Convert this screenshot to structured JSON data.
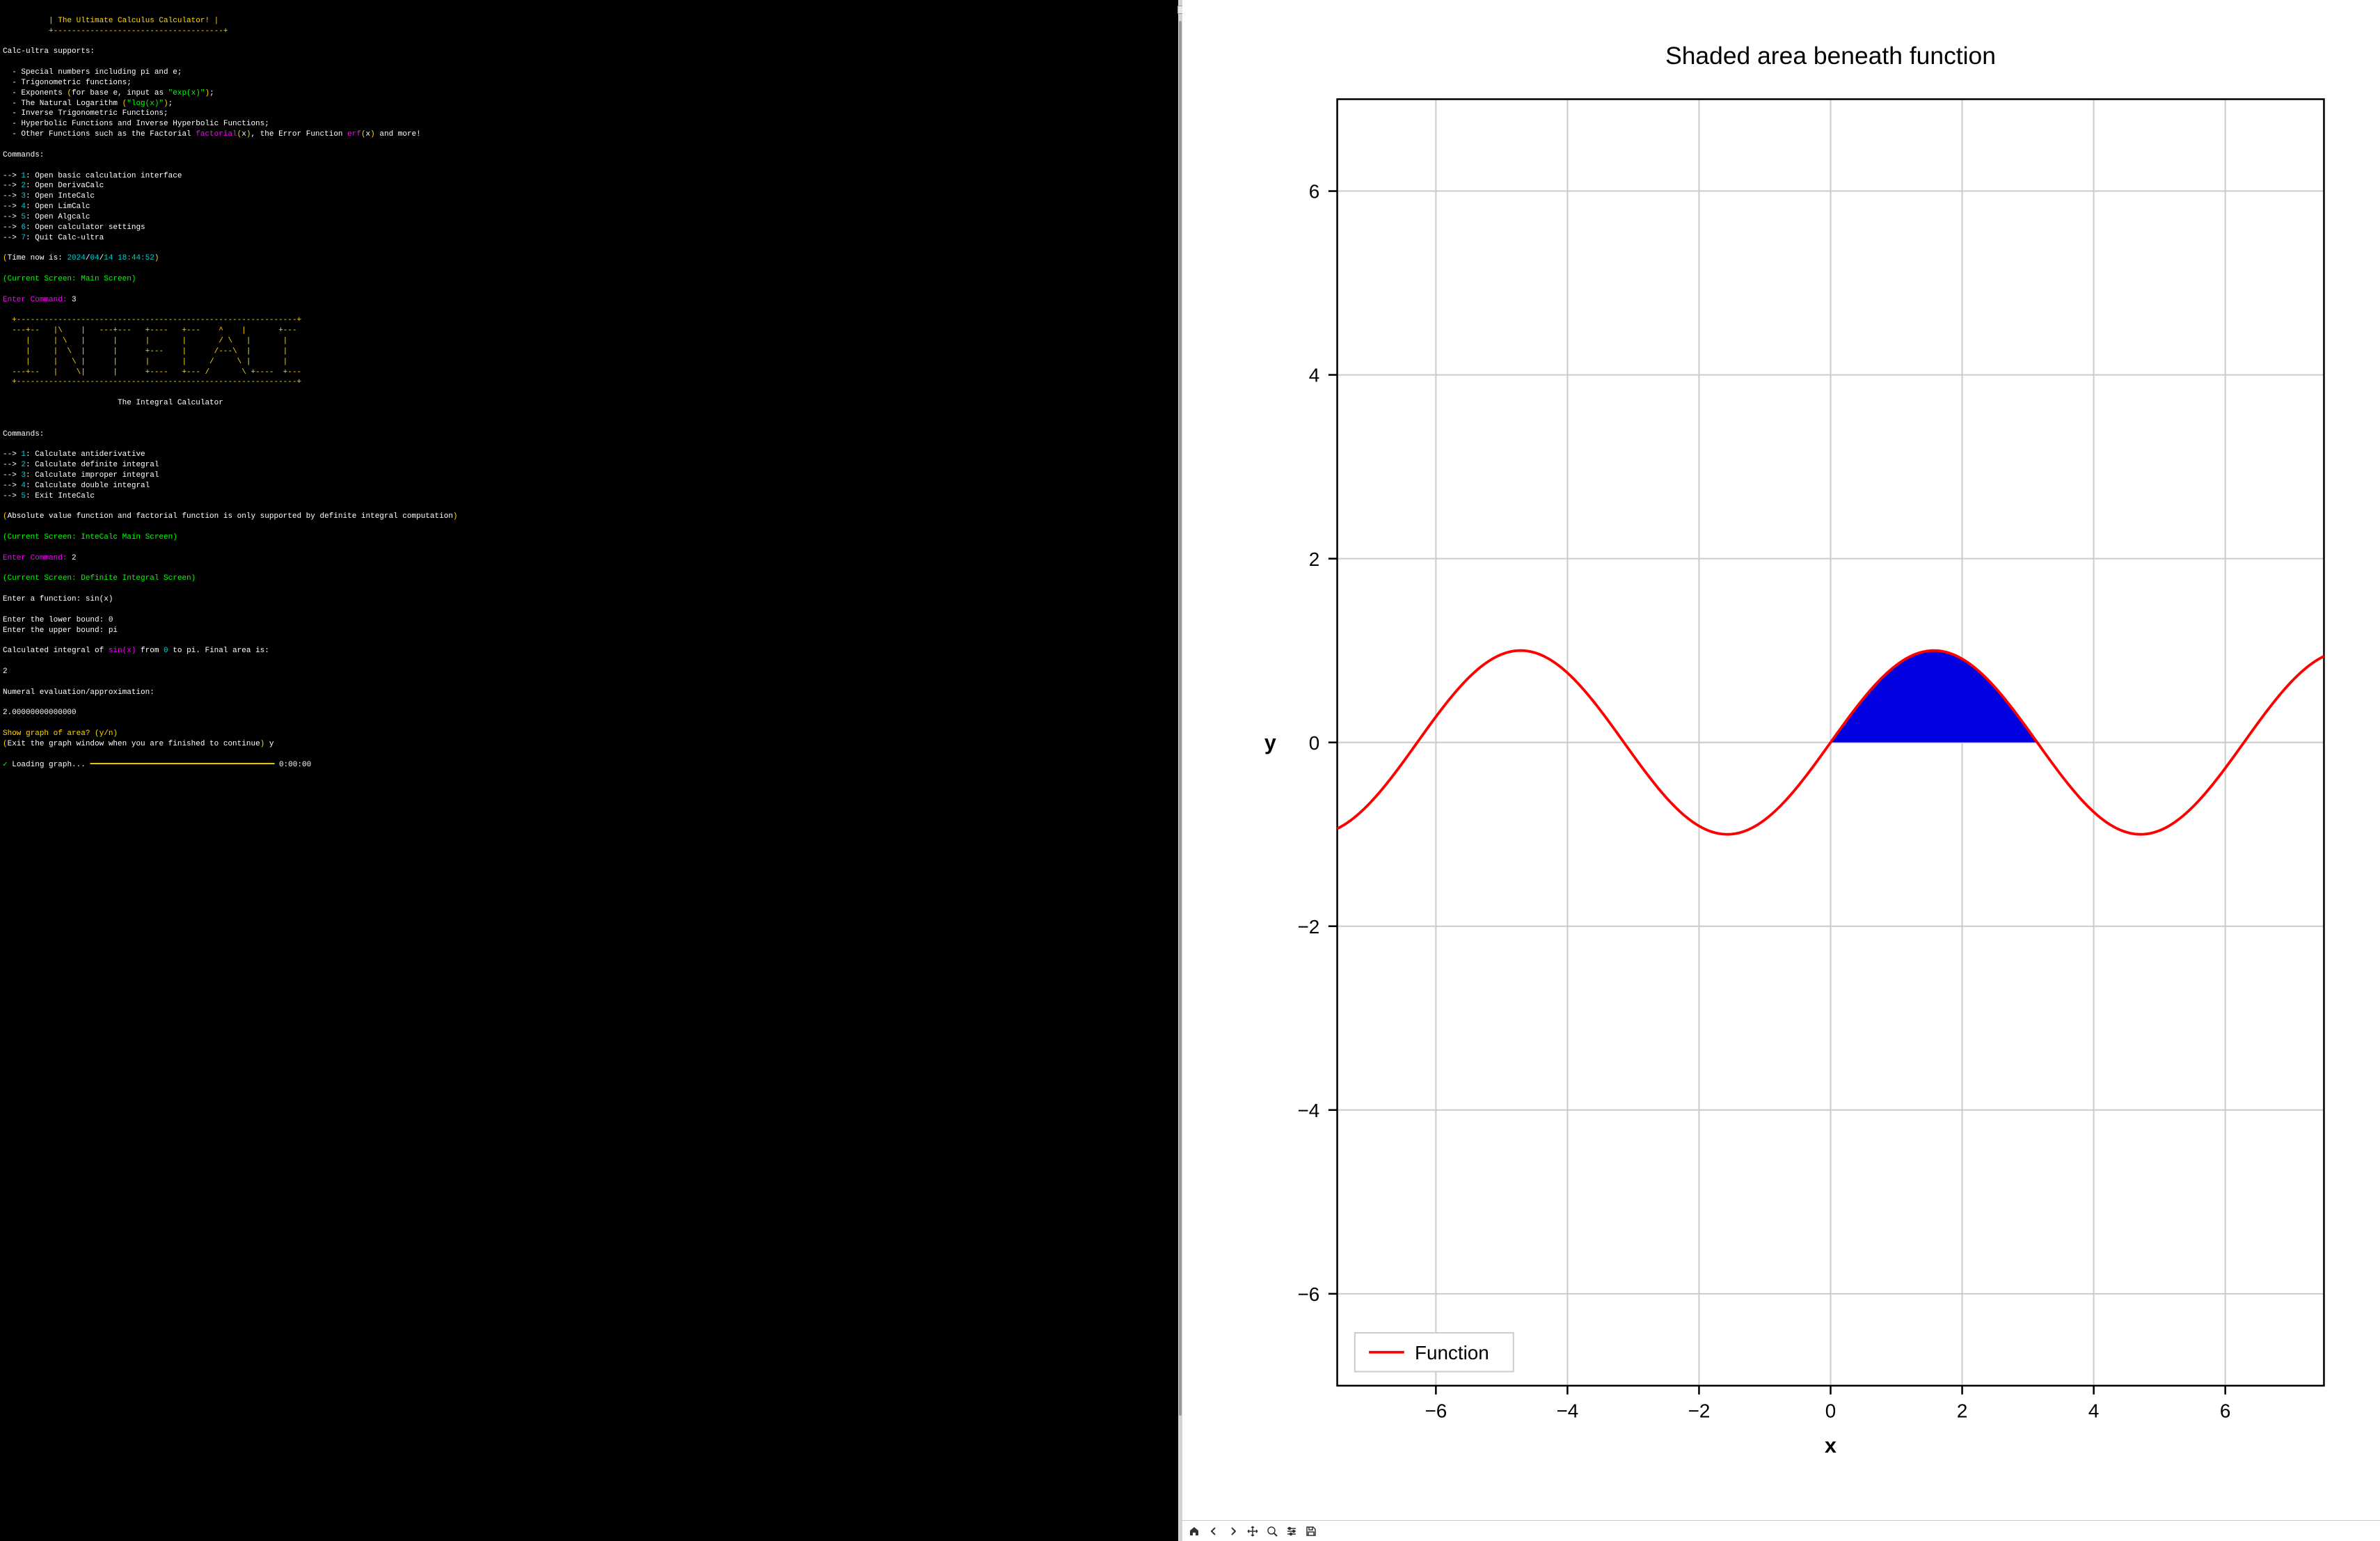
{
  "banner": {
    "border_top": "          +-------------------------------------+",
    "title_line": "          | The Ultimate Calculus Calculator! |",
    "border_bot": "          +-------------------------------------+"
  },
  "supports_header": "Calc-ultra supports:",
  "supports": {
    "l1": "  - Special numbers including pi and e;",
    "l2": "  - Trigonometric functions;",
    "l3a": "  - Exponents ",
    "l3b": "(",
    "l3c": "for base e, input as ",
    "l3d": "\"exp(x)\"",
    "l3e": ")",
    "l3f": ";",
    "l4a": "  - The Natural Logarithm ",
    "l4b": "(",
    "l4c": "\"log(x)\"",
    "l4d": ")",
    "l4e": ";",
    "l5": "  - Inverse Trigonometric Functions;",
    "l6": "  - Hyperbolic Functions and Inverse Hyperbolic Functions;",
    "l7a": "  - Other Functions such as the Factorial ",
    "l7b": "factorial",
    "l7c": "(",
    "l7d": "x",
    "l7e": ")",
    "l7f": ", the Error Function ",
    "l7g": "erf",
    "l7h": "(",
    "l7i": "x",
    "l7j": ")",
    "l7k": " and more!"
  },
  "commands_header": "Commands:",
  "main_cmds": {
    "arrow": "--> ",
    "c1n": "1",
    "c1t": ": Open basic calculation interface",
    "c2n": "2",
    "c2t": ": Open DerivaCalc",
    "c3n": "3",
    "c3t": ": Open InteCalc",
    "c4n": "4",
    "c4t": ": Open LimCalc",
    "c5n": "5",
    "c5t": ": Open Algcalc",
    "c6n": "6",
    "c6t": ": Open calculator settings",
    "c7n": "7",
    "c7t": ": Quit Calc-ultra"
  },
  "time": {
    "prefix": "(",
    "label": "Time now is: ",
    "y": "2024",
    "s1": "/",
    "m": "04",
    "s2": "/",
    "d": "14",
    "sp": " ",
    "t": "18:44:52",
    "suffix": ")"
  },
  "screen1": "(Current Screen: Main Screen)",
  "prompt1": {
    "label": "Enter Command: ",
    "val": "3"
  },
  "ascii": {
    "l0": "  +-------------------------------------------------------------+",
    "l1": "  ---+--   |\\    |   ---+---   +----   +---    ^    |       +---",
    "l2": "     |     | \\   |      |      |       |       / \\   |       |",
    "l3": "     |     |  \\  |      |      +---    |      /---\\  |       |",
    "l4": "     |     |   \\ |      |      |       |     /     \\ |       |",
    "l5": "  ---+--   |    \\|      |      +----   +--- /       \\ +----  +---",
    "l6": "  +-------------------------------------------------------------+"
  },
  "ascii_title": "                         The Integral Calculator",
  "inte_cmds": {
    "c1n": "1",
    "c1t": ": Calculate antiderivative",
    "c2n": "2",
    "c2t": ": Calculate definite integral",
    "c3n": "3",
    "c3t": ": Calculate improper integral",
    "c4n": "4",
    "c4t": ": Calculate double integral",
    "c5n": "5",
    "c5t": ": Exit InteCalc"
  },
  "note": {
    "p": "(",
    "text": "Absolute value function and factorial function is only supported by definite integral computation",
    "s": ")"
  },
  "screen2": "(Current Screen: InteCalc Main Screen)",
  "prompt2": {
    "label": "Enter Command: ",
    "val": "2"
  },
  "screen3": "(Current Screen: Definite Integral Screen)",
  "func_prompt": {
    "label": "Enter a function: ",
    "val": "sin(x)"
  },
  "lower": {
    "label": "Enter the lower bound: ",
    "val": "0"
  },
  "upper": {
    "label": "Enter the upper bound: ",
    "val": "pi"
  },
  "calc_result": {
    "p1": "Calculated integral of ",
    "fn": "sin(x)",
    "p2": " from ",
    "a": "0",
    "p3": " to ",
    "b": "pi",
    "p4": ". Final area is:"
  },
  "result_val": "2",
  "numeral_label": "Numeral evaluation/approximation:",
  "numeral_val": "2.00000000000000",
  "show_graph": {
    "q": "Show graph of area? ",
    "yn": "(y/n)"
  },
  "exit_hint": {
    "p": "(",
    "text": "Exit the graph window when you are finished to continue",
    "s": ")",
    "ans": " y"
  },
  "loading": {
    "check": "✓ ",
    "label": "Loading graph... ",
    "bar": "━━━━━━━━━━━━━━━━━━━━━━━━━━━━━━━━━━━━━━━━",
    "time": " 0:00:00"
  },
  "chart": {
    "title": "Shaded area beneath function",
    "xlabel": "x",
    "ylabel": "y",
    "xlim": [
      -7.5,
      7.5
    ],
    "ylim": [
      -7.0,
      7.0
    ],
    "xticks": [
      -6,
      -4,
      -2,
      0,
      2,
      4,
      6
    ],
    "yticks": [
      -6,
      -4,
      -2,
      0,
      2,
      4,
      6
    ],
    "xticklabels": [
      "−6",
      "−4",
      "−2",
      "0",
      "2",
      "4",
      "6"
    ],
    "yticklabels": [
      "−6",
      "−4",
      "−2",
      "0",
      "2",
      "4",
      "6"
    ],
    "line_color": "#ff0000",
    "fill_color": "#0000e0",
    "grid_color": "#cccccc",
    "border_color": "#000000",
    "bg_color": "#ffffff",
    "legend_label": "Function",
    "title_fontsize": 14,
    "tick_fontsize": 11,
    "label_fontsize": 12,
    "line_width": 1.5,
    "shade_range": [
      0,
      3.14159
    ]
  },
  "toolbar_icons": [
    "home",
    "back",
    "forward",
    "pan",
    "zoom",
    "configure",
    "save"
  ]
}
